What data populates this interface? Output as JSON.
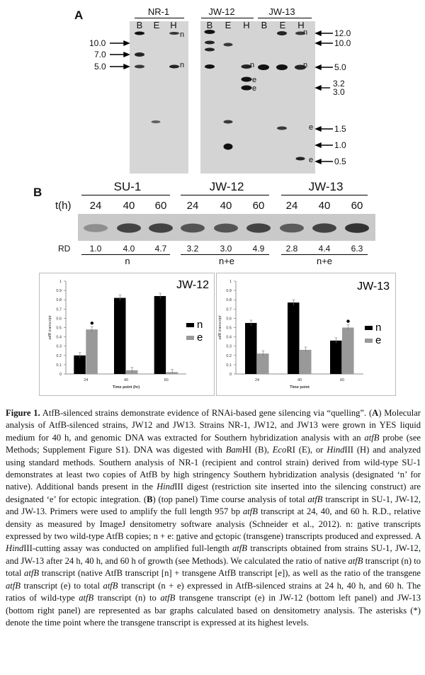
{
  "panel_a": {
    "label": "A",
    "groups": [
      {
        "name": "NR-1",
        "lanes": [
          "B",
          "E",
          "H"
        ]
      },
      {
        "name": "JW-12",
        "lanes": [
          "B",
          "E",
          "H"
        ]
      },
      {
        "name": "JW-13",
        "lanes": [
          "B",
          "E",
          "H"
        ]
      }
    ],
    "left_markers": [
      "10.0",
      "7.0",
      "5.0"
    ],
    "right_markers": [
      "12.0",
      "10.0",
      "5.0",
      "3.2",
      "3.0",
      "1.5",
      "1.0",
      "0.5"
    ],
    "band_marks": {
      "n": "n",
      "e": "e"
    }
  },
  "panel_b": {
    "label": "B",
    "strains": [
      "SU-1",
      "JW-12",
      "JW-13"
    ],
    "time_label": "t(h)",
    "time_points": [
      "24",
      "40",
      "60",
      "24",
      "40",
      "60",
      "24",
      "40",
      "60"
    ],
    "rd_label": "RD",
    "rd_values": [
      "1.0",
      "4.0",
      "4.7",
      "3.2",
      "3.0",
      "4.9",
      "2.8",
      "4.4",
      "6.3"
    ],
    "group_labels": [
      "n",
      "n+e",
      "n+e"
    ]
  },
  "chart_data": [
    {
      "type": "bar",
      "title": "JW-12",
      "categories": [
        "24",
        "40",
        "60"
      ],
      "series": [
        {
          "name": "n",
          "values": [
            0.2,
            0.82,
            0.84
          ],
          "color": "#000000"
        },
        {
          "name": "e",
          "values": [
            0.48,
            0.04,
            0.02
          ],
          "color": "#999999"
        }
      ],
      "xlabel": "Time point (hr)",
      "ylabel": "atfB transcript",
      "yticks": [
        "0",
        "0.1",
        "0.2",
        "0.3",
        "0.4",
        "0.5",
        "0.6",
        "0.7",
        "0.8",
        "0.9",
        "1"
      ],
      "ylim": [
        0,
        1
      ],
      "asterisk_on": "e@24",
      "legend": "right"
    },
    {
      "type": "bar",
      "title": "JW-13",
      "categories": [
        "24",
        "40",
        "60"
      ],
      "series": [
        {
          "name": "n",
          "values": [
            0.55,
            0.77,
            0.36
          ],
          "color": "#000000"
        },
        {
          "name": "e",
          "values": [
            0.22,
            0.26,
            0.5
          ],
          "color": "#999999"
        }
      ],
      "xlabel": "Time point",
      "ylabel": "atfB transcript",
      "yticks": [
        "0",
        "0.1",
        "0.2",
        "0.3",
        "0.4",
        "0.5",
        "0.6",
        "0.7",
        "0.8",
        "0.9",
        "1"
      ],
      "ylim": [
        0,
        1
      ],
      "asterisk_on": "e@60",
      "legend": "right"
    }
  ],
  "caption": {
    "title": "Figure 1.",
    "lead": "AtfB-silenced strains demonstrate evidence of RNAi-based gene silencing via “quelling”.",
    "body_html": "(<b>A</b>) Molecular analysis of AtfB-silenced strains, JW12 and JW13. Strains NR-1, JW12, and JW13 were grown in YES liquid medium for 40 h, and genomic DNA was extracted for Southern hybridization analysis with an <i>atfB</i> probe (see Methods; Supplement Figure S1). DNA was digested with <i>Bam</i>HI (B), <i>Eco</i>RI (E), or <i>Hind</i>III (H) and analyzed using standard methods. Southern analysis of NR-1 (recipient and control strain) derived from wild-type SU-1 demonstrates at least two copies of AtfB by high stringency Southern hybridization analysis (designated ‘n’ for native). Additional bands present in the <i>Hind</i>III digest (restriction site inserted into the silencing construct) are designated ‘e’ for ectopic integration. (<b>B</b>) (top panel) Time course analysis of total <i>atfB</i> transcript in SU-1, JW-12, and JW-13. Primers were used to amplify the full length 957 bp <i>atfB</i> transcript at 24, 40, and 60 h. R.D., relative density as measured by ImageJ densitometry software analysis (Schneider et al., 2012). n: <u>n</u>ative transcripts expressed by two wild-type AtfB copies; n + e: <u>n</u>ative and <u>e</u>ctopic (transgene) transcripts produced and expressed. A <i>Hind</i>III-cutting assay was conducted on amplified full-length <i>atfB</i> transcripts obtained from strains SU-1, JW-12, and JW-13 after 24 h, 40 h, and 60 h of growth (see Methods). We calculated the ratio of native <i>atfB</i> transcript (n) to total <i>atfB</i> transcript (native AtfB transcript [n] + transgene AtfB transcript [e]), as well as the ratio of the transgene <i>atfB</i> transcript (e) to total <i>atfB</i> transcript (n + e) expressed in AtfB-silenced strains at 24 h, 40 h, and 60 h. The ratios of wild-type <i>atfB</i> transcript (n) to <i>atfB</i> transgene transcript (e) in JW-12 (bottom left panel) and JW-13 (bottom right panel) are represented as bar graphs calculated based on densitometry analysis. The asterisks (*) denote the time point where the transgene transcript is expressed at its highest levels."
  }
}
